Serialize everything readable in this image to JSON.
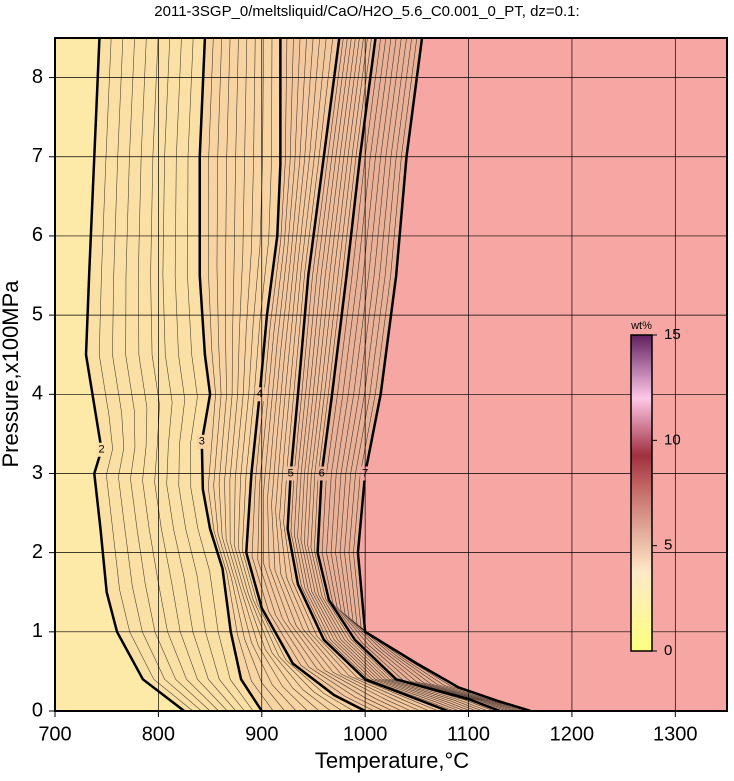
{
  "chart_data": {
    "type": "contour",
    "title": "2011-3SGP_0/meltsliquid/CaO/H2O_5.6_C0.001_0_PT, dz=0.1:",
    "x_label": "Temperature,°C",
    "y_label": "Pressure,x100MPa",
    "xlim": [
      700,
      1350
    ],
    "ylim": [
      0,
      8.5
    ],
    "xticks": [
      700,
      800,
      900,
      1000,
      1100,
      1200,
      1300
    ],
    "yticks": [
      0,
      1,
      2,
      3,
      4,
      5,
      6,
      7,
      8
    ],
    "grid": true,
    "background_color": "#fde9a8",
    "contours": [
      {
        "level": 2,
        "color": "#fbe0a5",
        "x": [
          743,
          738,
          733,
          730,
          740,
          745,
          738,
          744,
          750,
          760,
          785,
          825
        ],
        "y": [
          8.5,
          7,
          5.5,
          4.5,
          3.7,
          3.3,
          3,
          2.3,
          1.5,
          1,
          0.4,
          0
        ]
      },
      {
        "level": 3,
        "color": "#f7d4a2",
        "x": [
          845,
          840,
          840,
          845,
          850,
          842,
          843,
          850,
          862,
          870,
          880,
          900
        ],
        "y": [
          8.5,
          7,
          5.5,
          4.5,
          4,
          3.4,
          2.8,
          2.3,
          1.8,
          1,
          0.4,
          0
        ]
      },
      {
        "level": 4,
        "color": "#f3c89f",
        "x": [
          918,
          918,
          915,
          905,
          898,
          890,
          885,
          900,
          930,
          970,
          1000
        ],
        "y": [
          8.5,
          6.9,
          6,
          5,
          4,
          3,
          2,
          1.3,
          0.6,
          0.2,
          0
        ]
      },
      {
        "level": 5,
        "color": "#eebd9b",
        "x": [
          975,
          960,
          945,
          935,
          928,
          925,
          935,
          960,
          1000,
          1060,
          1080
        ],
        "y": [
          8.5,
          7,
          5.5,
          4,
          3,
          2.3,
          1.6,
          0.9,
          0.4,
          0.1,
          0
        ]
      },
      {
        "level": 6,
        "color": "#e9b298",
        "x": [
          1010,
          995,
          982,
          968,
          958,
          954,
          965,
          990,
          1030,
          1100,
          1130
        ],
        "y": [
          8.5,
          7,
          5.5,
          4,
          3,
          2,
          1.4,
          0.9,
          0.4,
          0.15,
          0
        ]
      },
      {
        "level": 7,
        "color": "#f7a7a3",
        "x": [
          1055,
          1040,
          1030,
          1015,
          1000,
          993,
          1000,
          1050,
          1090,
          1130,
          1160
        ],
        "y": [
          8.5,
          7,
          5.5,
          4,
          3,
          2,
          1,
          0.6,
          0.3,
          0.12,
          0
        ]
      }
    ],
    "colorbar": {
      "label": "wt%",
      "lim": [
        0,
        15
      ],
      "ticks": [
        0,
        5,
        10,
        15
      ]
    }
  }
}
